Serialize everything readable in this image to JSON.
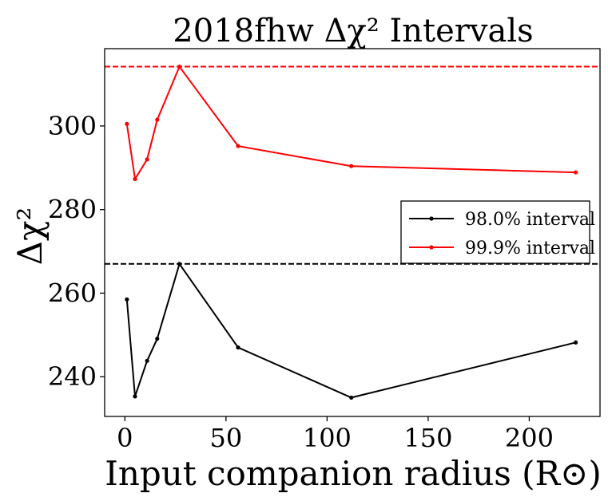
{
  "chart_data": {
    "type": "line",
    "title": "2018fhw Δχ² Intervals",
    "xlabel": "Input companion radius (R⊙)",
    "ylabel": "Δχ²",
    "xlim": [
      -10,
      235
    ],
    "ylim": [
      230.5,
      318.5
    ],
    "xticks": [
      0,
      50,
      100,
      150,
      200
    ],
    "yticks": [
      240,
      260,
      280,
      300
    ],
    "grid": false,
    "legend_position": "center-right",
    "series": [
      {
        "name": "98.0% interval",
        "color": "#000000",
        "x": [
          1,
          5,
          11,
          16,
          27,
          56,
          112,
          223
        ],
        "y": [
          258.5,
          235.3,
          243.8,
          249.1,
          267.0,
          247.0,
          235.0,
          248.2
        ],
        "threshold": 267.0
      },
      {
        "name": "99.9% interval",
        "color": "#ff0000",
        "x": [
          1,
          5,
          11,
          16,
          27,
          56,
          112,
          223
        ],
        "y": [
          300.5,
          287.3,
          292.0,
          301.5,
          314.2,
          295.2,
          290.4,
          288.9
        ],
        "threshold": 314.2
      }
    ]
  }
}
